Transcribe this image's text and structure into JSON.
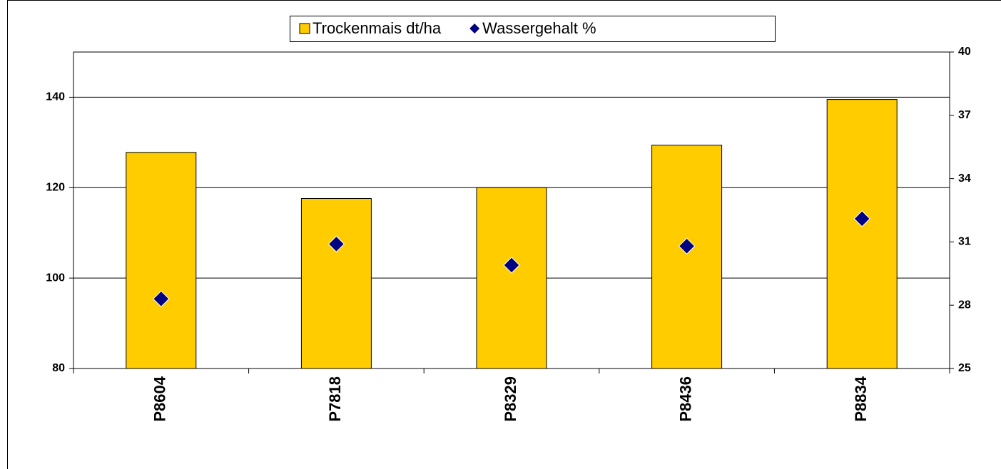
{
  "chart_data": {
    "type": "bar",
    "categories": [
      "P8604",
      "P7818",
      "P8329",
      "P8436",
      "P8834"
    ],
    "series": [
      {
        "name": "Trockenmais dt/ha",
        "type": "bar",
        "color": "#ffcc00",
        "values": [
          127.8,
          117.6,
          120.0,
          129.4,
          139.5
        ]
      },
      {
        "name": "Wassergehalt %",
        "type": "scatter",
        "axis": "y2",
        "color": "#000080",
        "values": [
          28.3,
          30.9,
          29.9,
          30.8,
          32.1
        ]
      }
    ],
    "ylim": [
      80,
      150
    ],
    "yticks": [
      80,
      100,
      120,
      140
    ],
    "y2lim": [
      25,
      40
    ],
    "y2ticks": [
      25,
      28,
      31,
      34,
      37,
      40
    ],
    "grid": true,
    "legend": "top"
  }
}
